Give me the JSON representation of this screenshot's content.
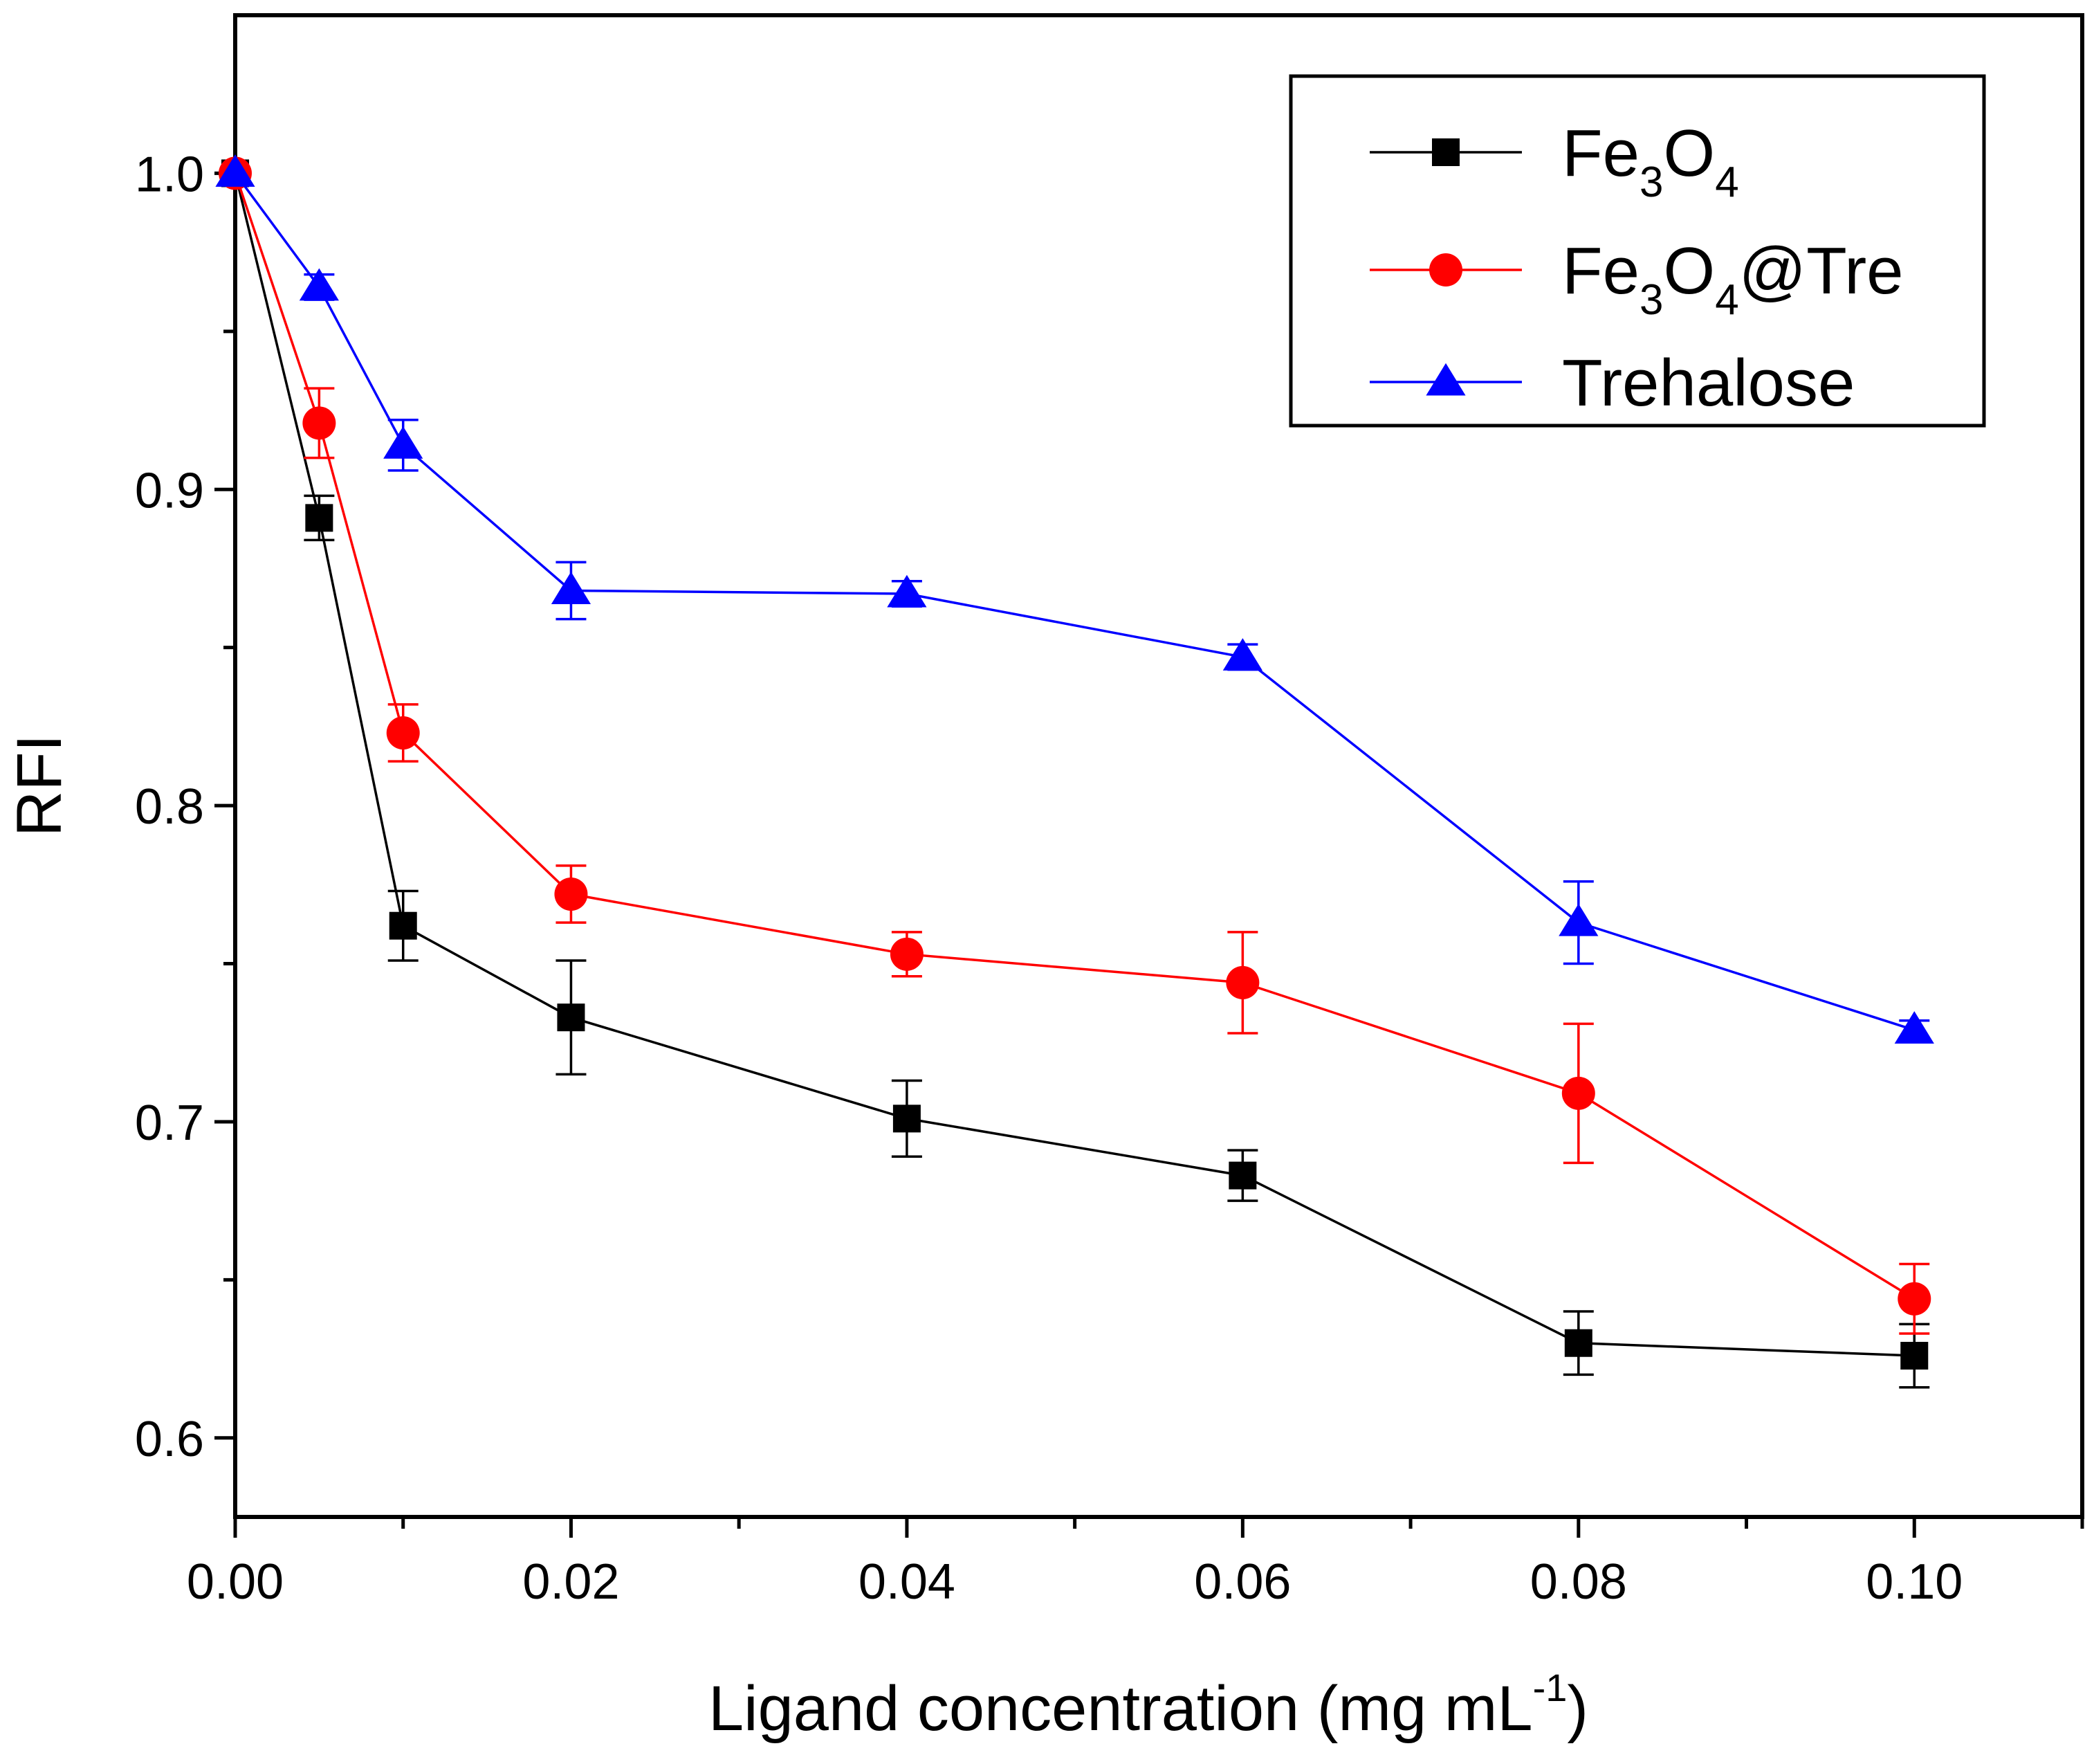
{
  "chart_data": {
    "type": "line",
    "title": "",
    "xlabel": "Ligand concentration (mg mL",
    "xlabel_sup": "-1",
    "xlabel_close": ")",
    "ylabel": "RFI",
    "xlim": [
      0,
      0.11
    ],
    "ylim": [
      0.575,
      1.05
    ],
    "xticks": [
      0.0,
      0.02,
      0.04,
      0.06,
      0.08,
      0.1
    ],
    "xtick_labels": [
      "0.00",
      "0.02",
      "0.04",
      "0.06",
      "0.08",
      "0.10"
    ],
    "xminor": [
      0.01,
      0.03,
      0.05,
      0.07,
      0.09,
      0.11
    ],
    "yticks": [
      0.6,
      0.7,
      0.8,
      0.9,
      1.0
    ],
    "ytick_labels": [
      "0.6",
      "0.7",
      "0.8",
      "0.9",
      "1.0"
    ],
    "yminor": [
      0.65,
      0.75,
      0.85,
      0.95
    ],
    "legend_position": "top-right",
    "x": [
      0.0,
      0.005,
      0.01,
      0.02,
      0.04,
      0.06,
      0.08,
      0.1
    ],
    "series": [
      {
        "name": "Fe3O4",
        "legend_parts": [
          [
            "Fe",
            ""
          ],
          [
            "3",
            "sub"
          ],
          [
            "O",
            ""
          ],
          [
            "4",
            "sub"
          ]
        ],
        "color": "#000000",
        "marker": "square",
        "values": [
          1.0,
          0.891,
          0.762,
          0.733,
          0.701,
          0.683,
          0.63,
          0.626
        ],
        "errors": [
          0.0,
          0.007,
          0.011,
          0.018,
          0.012,
          0.008,
          0.01,
          0.01
        ]
      },
      {
        "name": "Fe3O4@Tre",
        "legend_parts": [
          [
            "Fe",
            ""
          ],
          [
            "3",
            "sub"
          ],
          [
            "O",
            ""
          ],
          [
            "4",
            "sub"
          ],
          [
            "@Tre",
            ""
          ]
        ],
        "color": "#ff0000",
        "marker": "circle",
        "values": [
          1.0,
          0.921,
          0.823,
          0.772,
          0.753,
          0.744,
          0.709,
          0.644
        ],
        "errors": [
          0.0,
          0.011,
          0.009,
          0.009,
          0.007,
          0.016,
          0.022,
          0.011
        ]
      },
      {
        "name": "Trehalose",
        "legend_parts": [
          [
            "Trehalose",
            ""
          ]
        ],
        "color": "#0000ff",
        "marker": "triangle",
        "values": [
          1.0,
          0.964,
          0.914,
          0.868,
          0.867,
          0.847,
          0.763,
          0.729
        ],
        "errors": [
          0.0,
          0.004,
          0.008,
          0.009,
          0.004,
          0.004,
          0.013,
          0.003
        ]
      }
    ]
  }
}
